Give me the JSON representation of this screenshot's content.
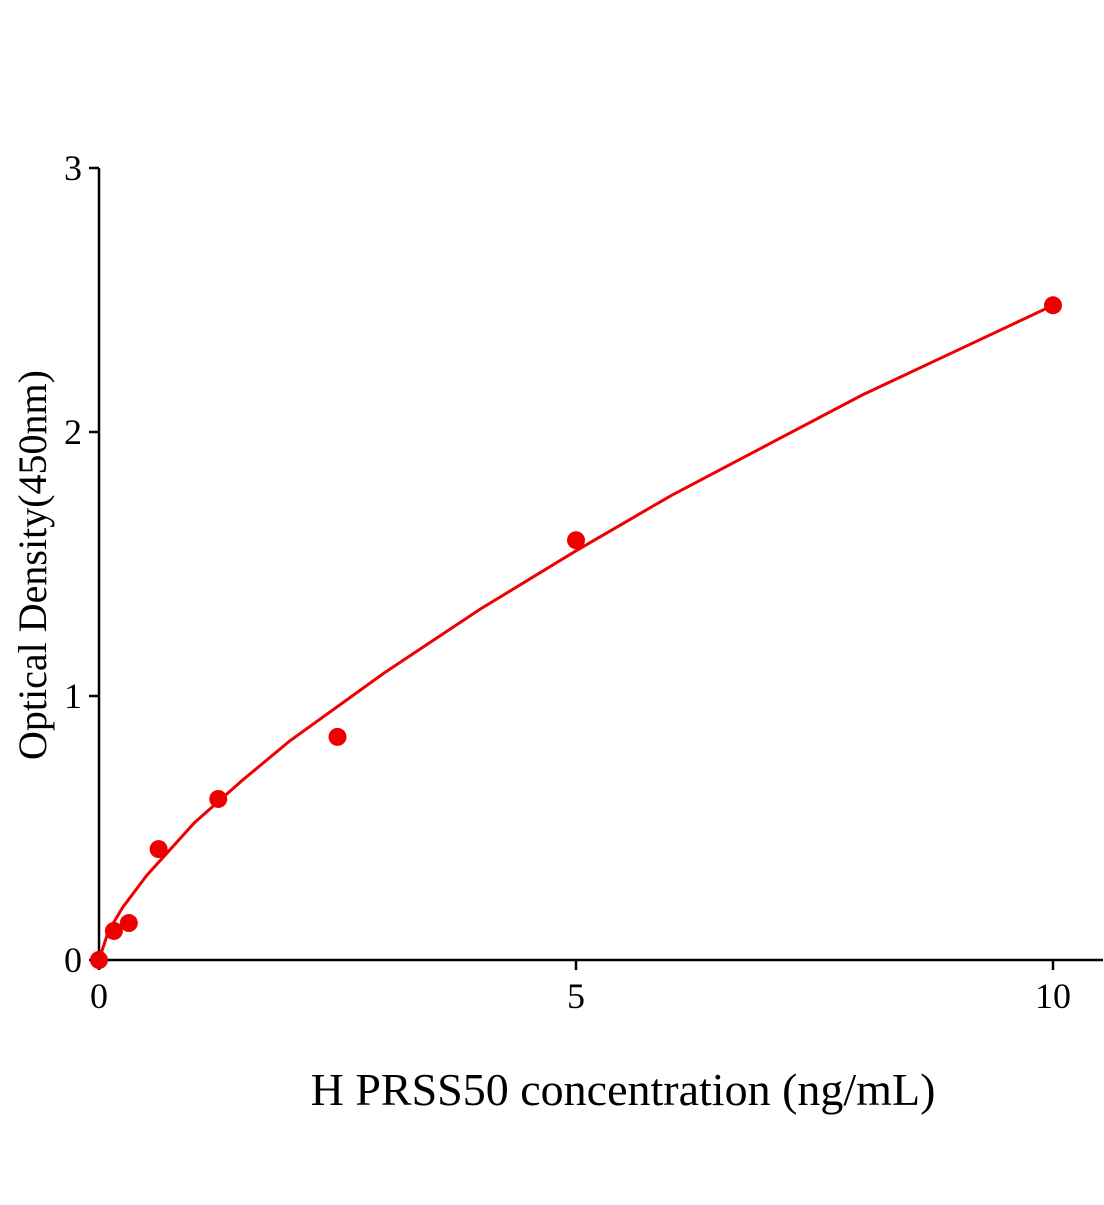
{
  "chart_data": {
    "type": "scatter",
    "title": "",
    "xlabel": "H PRSS50 concentration (ng/mL)",
    "ylabel": "Optical Density(450nm)",
    "xlim": [
      0,
      10.5
    ],
    "ylim": [
      0,
      3
    ],
    "xticks": [
      0,
      5,
      10
    ],
    "yticks": [
      0,
      1,
      2,
      3
    ],
    "grid": false,
    "color": "#ee0000",
    "points": {
      "x": [
        0,
        0.156,
        0.3125,
        0.625,
        1.25,
        2.5,
        5,
        10
      ],
      "y": [
        0,
        0.11,
        0.14,
        0.42,
        0.61,
        0.845,
        1.59,
        2.48
      ]
    },
    "fit_curve": {
      "x": [
        0,
        0.1,
        0.25,
        0.5,
        1,
        1.5,
        2,
        3,
        4,
        5,
        6,
        7,
        8,
        9,
        10
      ],
      "y": [
        0,
        0.11,
        0.2,
        0.32,
        0.52,
        0.68,
        0.83,
        1.09,
        1.33,
        1.55,
        1.76,
        1.95,
        2.14,
        2.31,
        2.48
      ]
    }
  }
}
